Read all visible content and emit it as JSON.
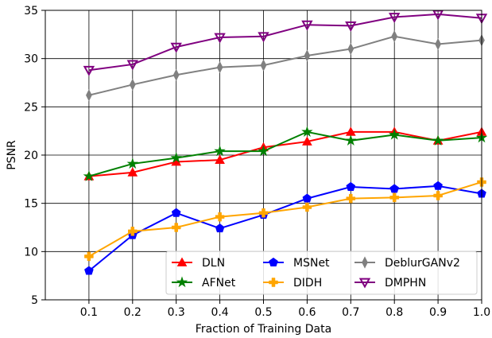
{
  "chart_data": {
    "type": "line",
    "xlabel": "Fraction of Training Data",
    "ylabel": "PSNR",
    "x": [
      0.1,
      0.2,
      0.3,
      0.4,
      0.5,
      0.6,
      0.7,
      0.8,
      0.9,
      1.0
    ],
    "xlim": [
      0.0,
      1.0
    ],
    "ylim": [
      5,
      35
    ],
    "xticks": [
      "0.1",
      "0.2",
      "0.3",
      "0.4",
      "0.5",
      "0.6",
      "0.7",
      "0.8",
      "0.9",
      "1.0"
    ],
    "yticks": [
      "5",
      "10",
      "15",
      "20",
      "25",
      "30",
      "35"
    ],
    "grid": true,
    "legend_position": "bottom-right",
    "series": [
      {
        "name": "DLN",
        "color": "#ff0000",
        "marker": "triangle-up",
        "values": [
          17.8,
          18.2,
          19.3,
          19.5,
          20.8,
          21.4,
          22.4,
          22.4,
          21.5,
          22.4
        ]
      },
      {
        "name": "AFNet",
        "color": "#008000",
        "marker": "star",
        "values": [
          17.8,
          19.1,
          19.7,
          20.4,
          20.4,
          22.4,
          21.5,
          22.1,
          21.5,
          21.8
        ]
      },
      {
        "name": "MSNet",
        "color": "#0000ff",
        "marker": "pentagon",
        "values": [
          8.0,
          11.7,
          14.0,
          12.4,
          13.8,
          15.5,
          16.7,
          16.5,
          16.8,
          16.0
        ]
      },
      {
        "name": "DIDH",
        "color": "#ffa500",
        "marker": "plus",
        "values": [
          9.5,
          12.1,
          12.5,
          13.6,
          14.0,
          14.6,
          15.5,
          15.6,
          15.8,
          17.2
        ]
      },
      {
        "name": "DeblurGANv2",
        "color": "#808080",
        "marker": "thin-diamond",
        "values": [
          26.2,
          27.3,
          28.3,
          29.1,
          29.3,
          30.3,
          31.0,
          32.3,
          31.5,
          31.9
        ]
      },
      {
        "name": "DMPHN",
        "color": "#800080",
        "marker": "triangle-down",
        "values": [
          28.8,
          29.4,
          31.2,
          32.2,
          32.3,
          33.5,
          33.4,
          34.3,
          34.6,
          34.2
        ]
      }
    ]
  }
}
